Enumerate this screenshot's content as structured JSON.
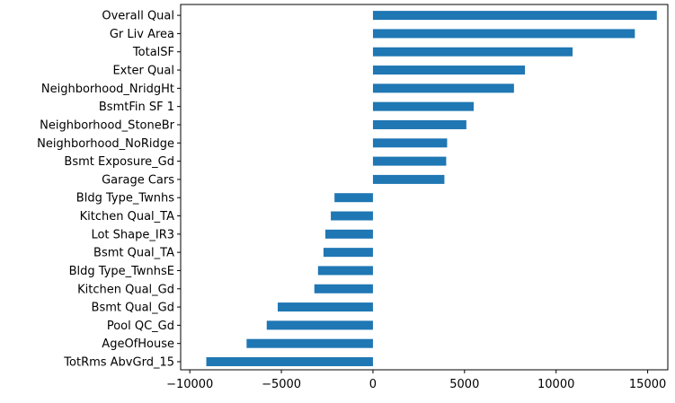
{
  "chart_data": {
    "type": "bar",
    "orientation": "horizontal",
    "title": "",
    "xlabel": "",
    "ylabel": "",
    "xlim": [
      -10500,
      16100
    ],
    "xticks": [
      -10000,
      -5000,
      0,
      5000,
      10000,
      15000
    ],
    "xtick_labels": [
      "−10000",
      "−5000",
      "0",
      "5000",
      "10000",
      "15000"
    ],
    "grid": false,
    "legend": "none",
    "bar_color": "#1f77b4",
    "categories": [
      "TotRms AbvGrd_15",
      "AgeOfHouse",
      "Pool QC_Gd",
      "Bsmt Qual_Gd",
      "Kitchen Qual_Gd",
      "Bldg Type_TwnhsE",
      "Bsmt Qual_TA",
      "Lot Shape_IR3",
      "Kitchen Qual_TA",
      "Bldg Type_Twnhs",
      "Garage Cars",
      "Bsmt Exposure_Gd",
      "Neighborhood_NoRidge",
      "Neighborhood_StoneBr",
      "BsmtFin SF 1",
      "Neighborhood_NridgHt",
      "Exter Qual",
      "TotalSF",
      "Gr Liv Area",
      "Overall Qual"
    ],
    "values": [
      -9100,
      -6900,
      -5800,
      -5200,
      -3200,
      -3000,
      -2700,
      -2600,
      -2300,
      -2100,
      3900,
      4000,
      4050,
      5100,
      5500,
      7700,
      8300,
      10900,
      14300,
      15500
    ]
  }
}
